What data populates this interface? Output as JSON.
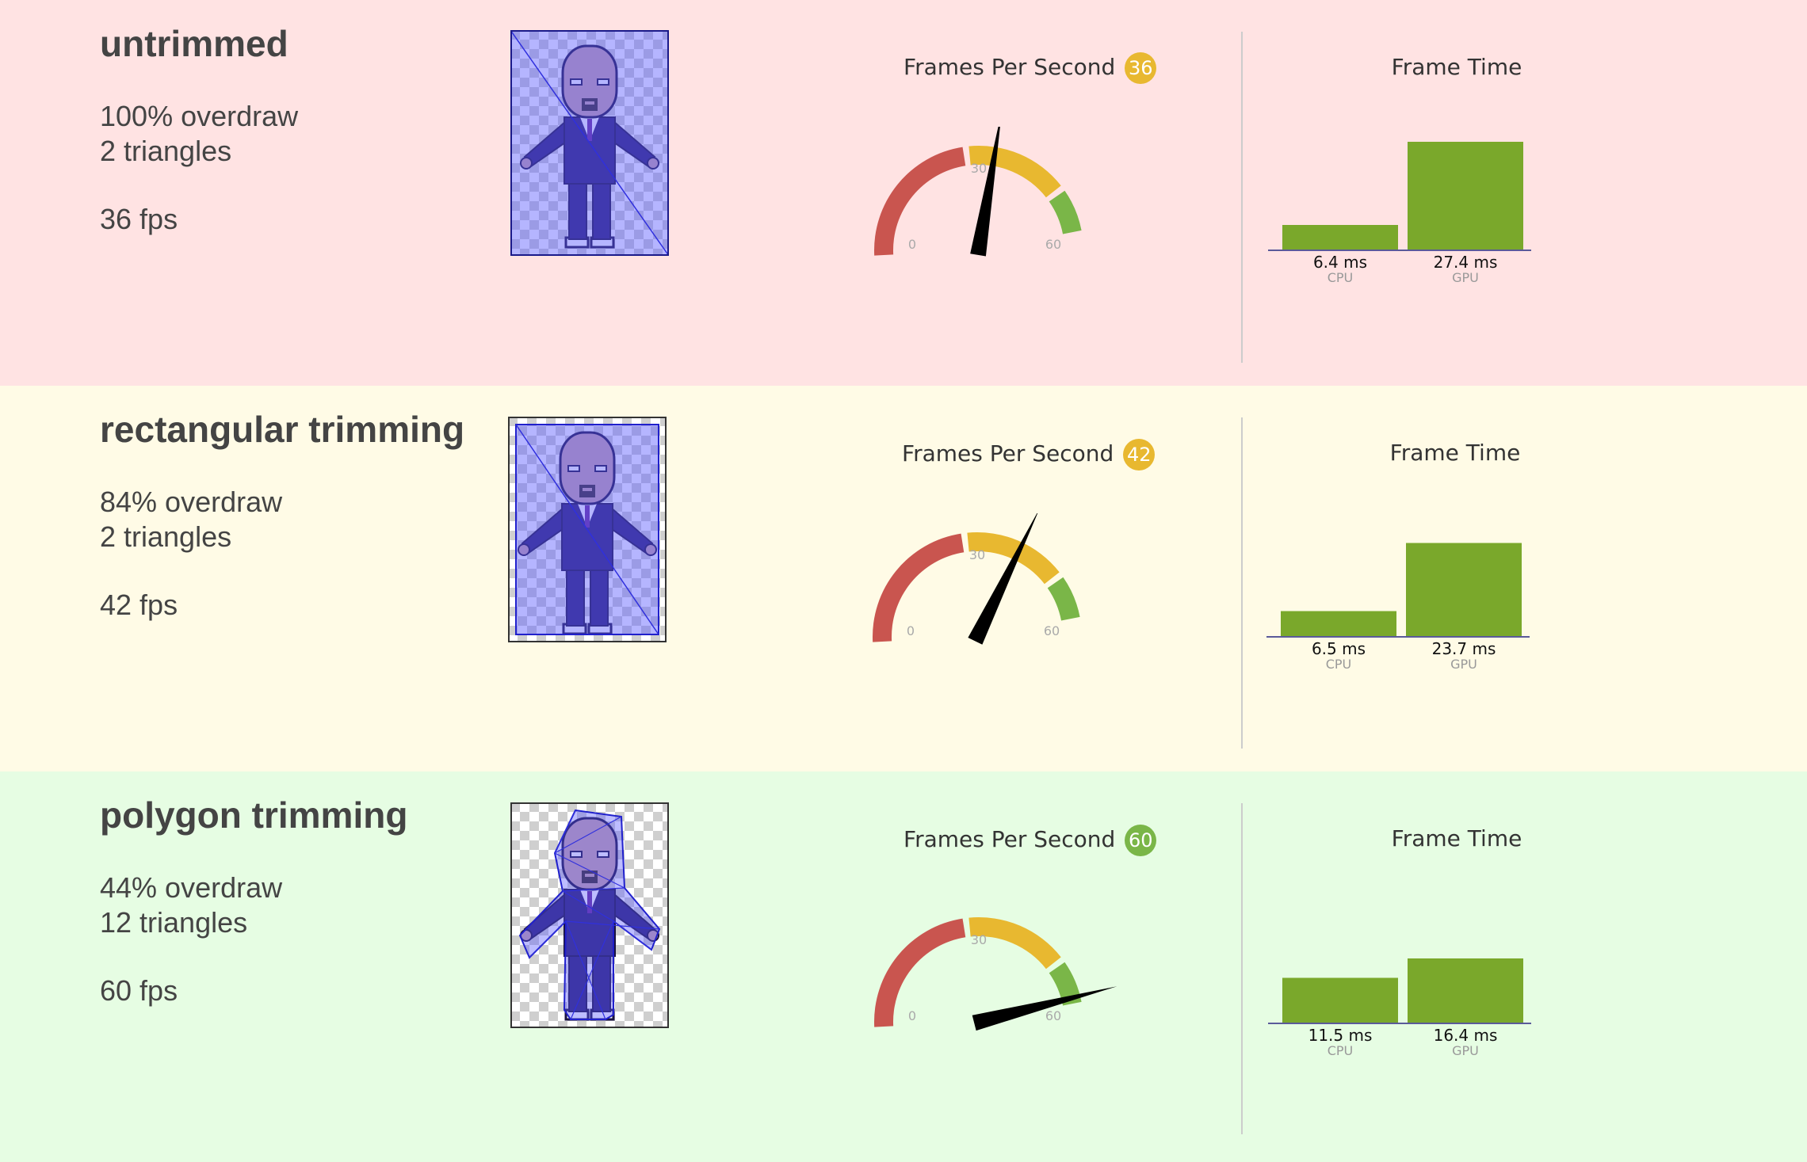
{
  "rows": [
    {
      "title": "untrimmed",
      "overdraw": "100% overdraw",
      "triangles": "2 triangles",
      "fps_text": "36 fps",
      "bg": "#ffe3e3",
      "fps_label": "Frames Per Second",
      "fps_value": "36",
      "fps": 36,
      "badge_color": "#e8b830",
      "frame_label": "Frame Time",
      "cpu_label": "6.4 ms",
      "gpu_label": "27.4 ms"
    },
    {
      "title": "rectangular trimming",
      "overdraw": "84% overdraw",
      "triangles": "2 triangles",
      "fps_text": "42 fps",
      "bg": "#fffbe6",
      "fps_label": "Frames Per Second",
      "fps_value": "42",
      "fps": 42,
      "badge_color": "#e8b830",
      "frame_label": "Frame Time",
      "cpu_label": "6.5 ms",
      "gpu_label": "23.7 ms"
    },
    {
      "title": "polygon trimming",
      "overdraw": "44% overdraw",
      "triangles": "12 triangles",
      "fps_text": "60 fps",
      "bg": "#e6fde3",
      "fps_label": "Frames Per Second",
      "fps_value": "60",
      "fps": 60,
      "badge_color": "#7ab648",
      "frame_label": "Frame Time",
      "cpu_label": "11.5 ms",
      "gpu_label": "16.4 ms"
    }
  ],
  "gauge": {
    "ticks": [
      "0",
      "30",
      "60"
    ],
    "range": [
      0,
      60
    ],
    "colors": {
      "low": "#c9554f",
      "mid": "#e8b830",
      "high": "#7ab648",
      "needle": "#000000"
    }
  },
  "bars": {
    "categories": [
      "CPU",
      "GPU"
    ],
    "color": "#7aa82b",
    "axis_color": "#5a5a9a"
  },
  "chart_data": [
    {
      "type": "gauge",
      "title": "Frames Per Second",
      "value": 36,
      "range": [
        0,
        60
      ],
      "ticks": [
        0,
        30,
        60
      ]
    },
    {
      "type": "bar",
      "title": "Frame Time",
      "categories": [
        "CPU",
        "GPU"
      ],
      "values": [
        6.4,
        27.4
      ],
      "data_labels": [
        "6.4 ms",
        "27.4 ms"
      ]
    },
    {
      "type": "gauge",
      "title": "Frames Per Second",
      "value": 42,
      "range": [
        0,
        60
      ],
      "ticks": [
        0,
        30,
        60
      ]
    },
    {
      "type": "bar",
      "title": "Frame Time",
      "categories": [
        "CPU",
        "GPU"
      ],
      "values": [
        6.5,
        23.7
      ],
      "data_labels": [
        "6.5 ms",
        "23.7 ms"
      ]
    },
    {
      "type": "gauge",
      "title": "Frames Per Second",
      "value": 60,
      "range": [
        0,
        60
      ],
      "ticks": [
        0,
        30,
        60
      ]
    },
    {
      "type": "bar",
      "title": "Frame Time",
      "categories": [
        "CPU",
        "GPU"
      ],
      "values": [
        11.5,
        16.4
      ],
      "data_labels": [
        "11.5 ms",
        "16.4 ms"
      ]
    }
  ]
}
